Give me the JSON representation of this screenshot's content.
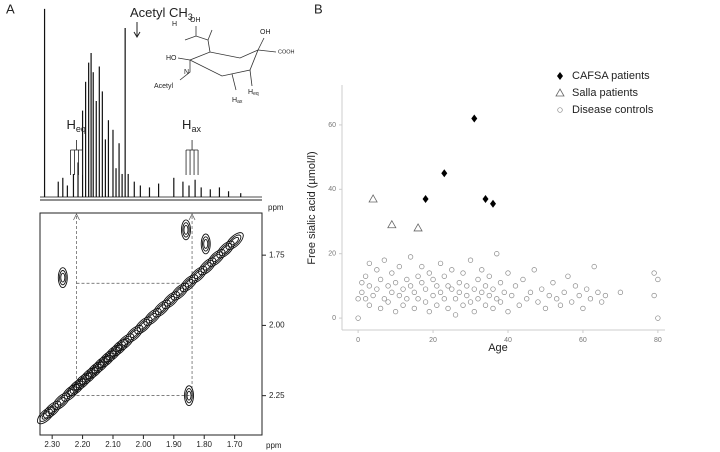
{
  "chart_data": [
    {
      "type": "spectrum",
      "panel": "A",
      "x": [
        2.325,
        2.28,
        2.265,
        2.25,
        2.23,
        2.215,
        2.2,
        2.19,
        2.18,
        2.172,
        2.165,
        2.155,
        2.145,
        2.135,
        2.125,
        2.115,
        2.1,
        2.09,
        2.08,
        2.07,
        2.06,
        2.05,
        2.03,
        2.01,
        1.98,
        1.95,
        1.9,
        1.87,
        1.85,
        1.83,
        1.81,
        1.78,
        1.75,
        1.72,
        1.68
      ],
      "values": [
        98,
        8,
        10,
        6,
        12,
        18,
        45,
        60,
        70,
        75,
        65,
        50,
        68,
        55,
        30,
        40,
        35,
        15,
        28,
        12,
        88,
        12,
        8,
        6,
        5,
        7,
        10,
        8,
        6,
        9,
        5,
        4,
        5,
        3,
        2
      ],
      "xlim": [
        2.34,
        1.61
      ],
      "ylim": [
        0,
        100
      ],
      "x_label": "ppm",
      "peak_label": "Acetyl CH",
      "peak_label_sub": "3",
      "eq_label": "H",
      "eq_sub": "eq",
      "ax_label": "H",
      "ax_sub": "ax",
      "structure_labels": [
        "H",
        "OH",
        "OH",
        "COOH",
        "HO",
        "N",
        "Acetyl",
        "H",
        "eq",
        "H",
        "ax"
      ],
      "color": "#111111"
    },
    {
      "type": "contour",
      "xlim": [
        2.34,
        1.61
      ],
      "ylim": [
        1.6,
        2.39
      ],
      "xticks": [
        {
          "value": 2.3,
          "label": "2.30"
        },
        {
          "value": 2.2,
          "label": "2.20"
        },
        {
          "value": 2.1,
          "label": "2.10"
        },
        {
          "value": 2.0,
          "label": "2.00"
        },
        {
          "value": 1.9,
          "label": "1.90"
        },
        {
          "value": 1.8,
          "label": "1.80"
        },
        {
          "value": 1.7,
          "label": "1.70"
        }
      ],
      "yticks": [
        {
          "value": 1.75,
          "label": "1.75"
        },
        {
          "value": 2.0,
          "label": "2.00"
        },
        {
          "value": 2.25,
          "label": "2.25"
        }
      ],
      "x_label": "ppm",
      "diagonal": [
        2.32,
        2.3,
        2.27,
        2.24,
        2.22,
        2.2,
        2.18,
        2.16,
        2.14,
        2.12,
        2.1,
        2.08,
        2.06,
        2.03,
        2.0,
        1.97,
        1.94,
        1.91,
        1.88,
        1.85,
        1.82,
        1.79,
        1.76,
        1.73,
        1.7
      ],
      "cross_peaks": {
        "x": [
          2.265,
          1.85,
          1.795,
          1.86
        ],
        "y": [
          1.83,
          2.25,
          1.71,
          1.66
        ]
      },
      "guides": {
        "x": [
          2.22,
          1.84
        ],
        "y": [
          1.85,
          2.25
        ]
      },
      "color": "#111111"
    },
    {
      "type": "scatter",
      "panel": "B",
      "x_label": "Age",
      "y_label": "Free sialic acid (µmol/l)",
      "xlim": [
        -4.3,
        81.9
      ],
      "ylim": [
        -3.7,
        72.4
      ],
      "xticks": [
        0,
        20,
        40,
        60,
        80
      ],
      "yticks": [
        0,
        20,
        40,
        60
      ],
      "legend": "top-right",
      "series": [
        {
          "name": "CAFSA patients",
          "color": "#000000",
          "marker": "diamond",
          "x": [
            18,
            23,
            31,
            34,
            36
          ],
          "values": [
            37,
            45,
            62,
            37,
            35.5
          ]
        },
        {
          "name": "Salla patients",
          "color": "#666666",
          "marker": "triangle",
          "x": [
            4,
            9,
            16
          ],
          "values": [
            37,
            29,
            28
          ]
        },
        {
          "name": "Disease controls",
          "color": "#8a8a8a",
          "marker": "circle",
          "x": [
            0,
            0,
            1,
            1,
            2,
            2,
            3,
            3,
            3,
            4,
            5,
            5,
            6,
            6,
            7,
            7,
            8,
            8,
            9,
            9,
            10,
            10,
            11,
            11,
            12,
            12,
            13,
            13,
            14,
            14,
            15,
            15,
            16,
            16,
            17,
            17,
            18,
            18,
            19,
            19,
            20,
            20,
            21,
            21,
            22,
            22,
            23,
            23,
            24,
            24,
            25,
            25,
            26,
            26,
            27,
            27,
            28,
            28,
            29,
            29,
            30,
            30,
            31,
            31,
            32,
            32,
            33,
            33,
            34,
            34,
            35,
            35,
            36,
            36,
            37,
            37,
            38,
            38,
            39,
            40,
            40,
            41,
            42,
            43,
            44,
            45,
            46,
            47,
            48,
            49,
            50,
            51,
            52,
            53,
            54,
            55,
            56,
            57,
            58,
            59,
            60,
            61,
            62,
            63,
            64,
            65,
            66,
            70,
            79,
            79,
            80,
            80
          ],
          "values": [
            0,
            6,
            11,
            8,
            6,
            13,
            10,
            4,
            17,
            7,
            15,
            9,
            12,
            3,
            6,
            18,
            10,
            5,
            8,
            14,
            2,
            11,
            7,
            16,
            9,
            4,
            12,
            6,
            19,
            10,
            8,
            3,
            13,
            6,
            11,
            16,
            5,
            9,
            14,
            2,
            7,
            12,
            10,
            4,
            17,
            8,
            6,
            13,
            3,
            10,
            9,
            15,
            6,
            1,
            11,
            8,
            4,
            14,
            7,
            10,
            5,
            18,
            9,
            2,
            12,
            6,
            8,
            15,
            4,
            10,
            7,
            13,
            3,
            9,
            20,
            6,
            11,
            5,
            8,
            14,
            2,
            7,
            10,
            4,
            12,
            6,
            8,
            15,
            5,
            9,
            3,
            7,
            11,
            6,
            4,
            8,
            13,
            5,
            10,
            7,
            3,
            9,
            6,
            16,
            8,
            5,
            7,
            8,
            14,
            7,
            0,
            12
          ]
        }
      ]
    }
  ]
}
